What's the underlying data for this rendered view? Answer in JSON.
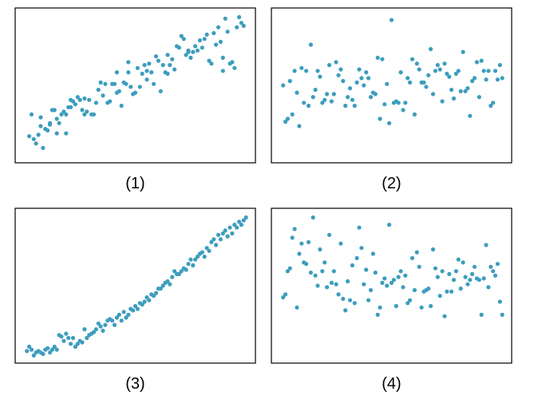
{
  "point_color": "#3d9dbd",
  "frame_color": "#000000",
  "chart_data": [
    {
      "type": "scatter",
      "label": "(1)",
      "title": "",
      "xlabel": "",
      "ylabel": "",
      "axes_shown": false,
      "grid": false,
      "xlim": [
        0,
        100
      ],
      "ylim": [
        0,
        100
      ],
      "x": [
        4,
        5,
        6,
        7,
        8,
        9,
        9,
        10,
        11,
        12,
        13,
        13,
        14,
        15,
        16,
        16,
        17,
        18,
        19,
        20,
        20,
        21,
        22,
        22,
        23,
        24,
        25,
        26,
        27,
        28,
        28,
        29,
        30,
        31,
        32,
        33,
        34,
        35,
        36,
        37,
        38,
        39,
        40,
        41,
        42,
        42,
        43,
        44,
        45,
        46,
        47,
        47,
        48,
        49,
        50,
        51,
        52,
        53,
        54,
        55,
        55,
        56,
        57,
        58,
        59,
        60,
        61,
        62,
        63,
        64,
        64,
        65,
        66,
        67,
        68,
        69,
        70,
        71,
        72,
        73,
        73,
        74,
        75,
        76,
        77,
        78,
        79,
        80,
        81,
        82,
        83,
        84,
        85,
        86,
        87,
        88,
        88,
        89,
        90,
        91,
        92,
        93,
        94,
        95,
        96,
        97
      ],
      "y": [
        15,
        30,
        13,
        10,
        16,
        28,
        22,
        7,
        20,
        19,
        23,
        24,
        33,
        33,
        27,
        17,
        24,
        30,
        32,
        30,
        17,
        35,
        40,
        35,
        39,
        37,
        42,
        40,
        33,
        41,
        30,
        32,
        40,
        30,
        30,
        38,
        47,
        52,
        43,
        51,
        38,
        39,
        51,
        51,
        45,
        59,
        46,
        36,
        52,
        51,
        66,
        59,
        49,
        44,
        45,
        62,
        49,
        58,
        64,
        54,
        60,
        65,
        59,
        51,
        70,
        67,
        46,
        64,
        59,
        71,
        58,
        64,
        68,
        61,
        77,
        76,
        84,
        82,
        71,
        73,
        74,
        69,
        73,
        77,
        74,
        81,
        76,
        82,
        85,
        67,
        65,
        86,
        78,
        90,
        80,
        69,
        60,
        96,
        87,
        65,
        66,
        62,
        90,
        97,
        93,
        91
      ]
    },
    {
      "type": "scatter",
      "label": "(2)",
      "title": "",
      "xlabel": "",
      "ylabel": "",
      "axes_shown": false,
      "grid": false,
      "xlim": [
        0,
        100
      ],
      "ylim": [
        0,
        100
      ],
      "x": [
        3,
        4,
        5,
        6,
        7,
        8,
        9,
        10,
        11,
        12,
        13,
        14,
        15,
        16,
        17,
        18,
        19,
        20,
        21,
        22,
        23,
        24,
        25,
        26,
        27,
        28,
        29,
        30,
        31,
        32,
        33,
        34,
        35,
        36,
        37,
        38,
        39,
        40,
        41,
        42,
        43,
        44,
        45,
        46,
        47,
        48,
        49,
        50,
        51,
        52,
        53,
        54,
        55,
        56,
        57,
        58,
        59,
        60,
        61,
        62,
        63,
        64,
        65,
        66,
        67,
        68,
        69,
        70,
        71,
        72,
        73,
        74,
        75,
        76,
        77,
        78,
        79,
        80,
        81,
        82,
        83,
        84,
        85,
        86,
        87,
        88,
        89,
        90,
        91,
        92,
        93,
        94,
        95,
        96,
        97,
        98
      ],
      "y": [
        50,
        25,
        27,
        53,
        30,
        60,
        45,
        22,
        62,
        38,
        60,
        36,
        78,
        42,
        47,
        60,
        56,
        38,
        40,
        44,
        64,
        39,
        44,
        66,
        57,
        61,
        53,
        36,
        42,
        48,
        40,
        36,
        52,
        61,
        55,
        50,
        59,
        55,
        42,
        45,
        44,
        69,
        27,
        68,
        37,
        51,
        24,
        95,
        38,
        39,
        38,
        59,
        33,
        38,
        55,
        52,
        68,
        30,
        65,
        61,
        52,
        52,
        49,
        57,
        75,
        44,
        60,
        64,
        61,
        39,
        65,
        58,
        56,
        47,
        41,
        58,
        60,
        46,
        73,
        46,
        48,
        29,
        53,
        55,
        66,
        42,
        67,
        60,
        54,
        60,
        36,
        38,
        60,
        54,
        64,
        55
      ]
    },
    {
      "type": "scatter",
      "label": "(3)",
      "title": "",
      "xlabel": "",
      "ylabel": "",
      "axes_shown": false,
      "grid": false,
      "xlim": [
        0,
        100
      ],
      "ylim": [
        0,
        100
      ],
      "x": [
        3,
        4,
        5,
        6,
        7,
        8,
        9,
        10,
        11,
        12,
        13,
        14,
        15,
        16,
        17,
        18,
        19,
        20,
        21,
        22,
        23,
        24,
        25,
        26,
        27,
        28,
        29,
        30,
        31,
        32,
        33,
        34,
        35,
        36,
        37,
        38,
        39,
        40,
        41,
        42,
        43,
        44,
        45,
        46,
        47,
        48,
        49,
        50,
        51,
        52,
        53,
        54,
        55,
        56,
        57,
        58,
        59,
        60,
        61,
        62,
        63,
        64,
        65,
        66,
        67,
        68,
        69,
        70,
        71,
        72,
        73,
        74,
        75,
        76,
        77,
        78,
        79,
        80,
        81,
        82,
        83,
        84,
        85,
        86,
        87,
        88,
        89,
        90,
        91,
        92,
        93,
        94,
        95,
        96,
        97,
        98
      ],
      "y": [
        5,
        8,
        6,
        2,
        4,
        5,
        4,
        3,
        6,
        7,
        4,
        6,
        8,
        6,
        16,
        15,
        12,
        17,
        14,
        10,
        14,
        8,
        10,
        12,
        11,
        20,
        14,
        16,
        17,
        18,
        20,
        24,
        22,
        19,
        23,
        26,
        27,
        26,
        23,
        28,
        30,
        26,
        32,
        28,
        30,
        34,
        33,
        36,
        34,
        38,
        37,
        39,
        42,
        40,
        44,
        43,
        45,
        48,
        48,
        50,
        52,
        53,
        51,
        56,
        60,
        58,
        58,
        60,
        62,
        61,
        65,
        68,
        64,
        68,
        70,
        72,
        73,
        70,
        76,
        74,
        80,
        82,
        78,
        85,
        82,
        86,
        88,
        84,
        90,
        86,
        92,
        90,
        94,
        92,
        95,
        97
      ]
    },
    {
      "type": "scatter",
      "label": "(4)",
      "title": "",
      "xlabel": "",
      "ylabel": "",
      "axes_shown": false,
      "grid": false,
      "xlim": [
        0,
        100
      ],
      "ylim": [
        0,
        100
      ],
      "x": [
        3,
        4,
        5,
        6,
        7,
        8,
        9,
        10,
        11,
        12,
        13,
        14,
        15,
        16,
        17,
        18,
        19,
        20,
        21,
        22,
        23,
        24,
        25,
        26,
        27,
        28,
        29,
        30,
        31,
        32,
        33,
        34,
        35,
        36,
        37,
        38,
        39,
        40,
        41,
        42,
        43,
        44,
        45,
        46,
        47,
        48,
        49,
        50,
        51,
        52,
        53,
        54,
        55,
        56,
        57,
        58,
        59,
        60,
        61,
        62,
        63,
        64,
        65,
        66,
        67,
        68,
        69,
        70,
        71,
        72,
        73,
        74,
        75,
        76,
        77,
        78,
        79,
        80,
        81,
        82,
        83,
        84,
        85,
        86,
        87,
        88,
        89,
        90,
        91,
        92,
        93,
        94,
        95,
        96,
        97,
        98
      ],
      "y": [
        42,
        44,
        60,
        62,
        83,
        89,
        35,
        72,
        79,
        66,
        65,
        80,
        59,
        97,
        57,
        50,
        75,
        60,
        66,
        49,
        85,
        52,
        60,
        51,
        44,
        79,
        41,
        33,
        53,
        40,
        64,
        38,
        69,
        90,
        76,
        51,
        61,
        40,
        47,
        72,
        59,
        30,
        35,
        52,
        55,
        50,
        92,
        52,
        54,
        36,
        56,
        60,
        49,
        57,
        38,
        40,
        69,
        47,
        73,
        63,
        35,
        46,
        47,
        48,
        36,
        75,
        62,
        56,
        43,
        60,
        29,
        46,
        58,
        46,
        54,
        60,
        68,
        48,
        66,
        56,
        51,
        54,
        58,
        63,
        55,
        54,
        30,
        55,
        78,
        49,
        63,
        60,
        57,
        65,
        39,
        30
      ]
    }
  ]
}
